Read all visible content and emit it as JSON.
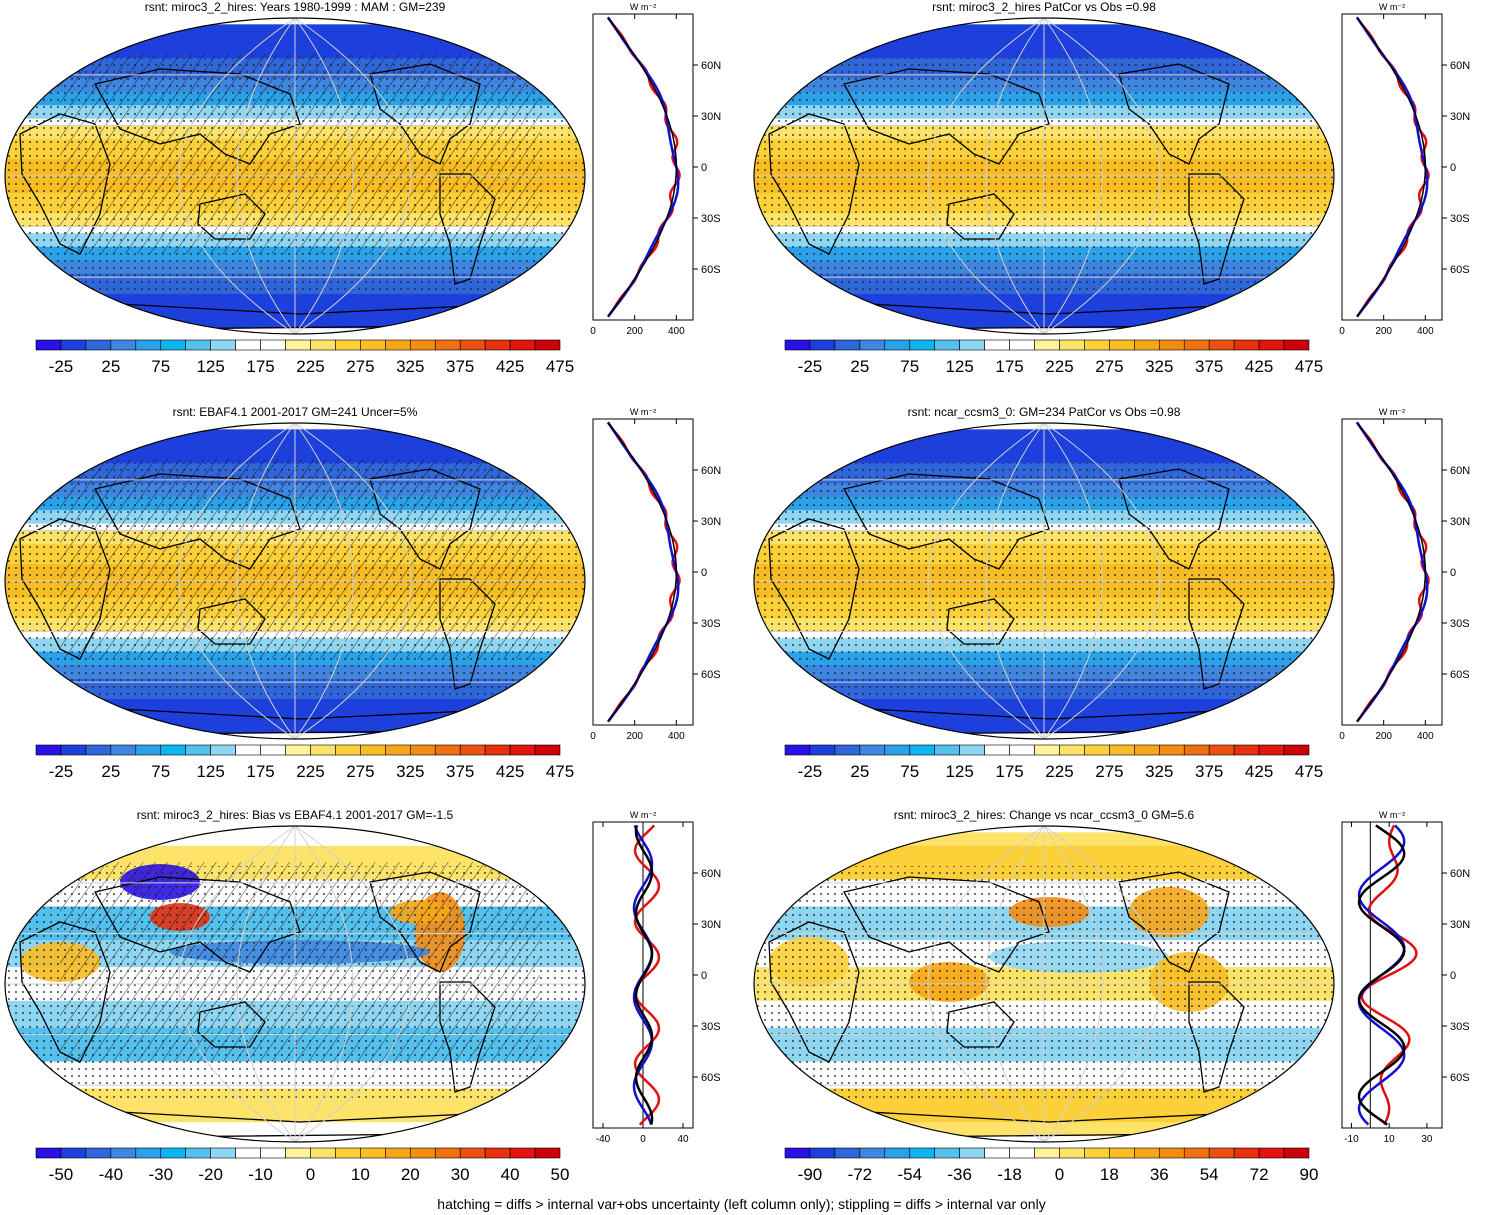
{
  "footer": "hatching = diffs > internal var+obs uncertainty (left column only); stippling = diffs > internal var only",
  "units_label": "W m⁻²",
  "lat_labels": [
    "60N",
    "30N",
    "0",
    "30S",
    "60S"
  ],
  "scales": {
    "abs": {
      "ticks": [
        "-25",
        "25",
        "75",
        "125",
        "175",
        "225",
        "275",
        "325",
        "375",
        "425",
        "475"
      ],
      "colors": [
        "#2a12e6",
        "#1d3fdb",
        "#2f66d9",
        "#3e86e0",
        "#2aa2ea",
        "#0cb5ef",
        "#54c0ed",
        "#8fd6f2",
        "#ffffff",
        "#ffffff",
        "#fff39c",
        "#fde36a",
        "#fcd038",
        "#f8bd22",
        "#f6a619",
        "#f48c14",
        "#f1700f",
        "#ec500f",
        "#e6300e",
        "#e3150f",
        "#cc0008"
      ]
    },
    "bias": {
      "ticks": [
        "-50",
        "-40",
        "-30",
        "-20",
        "-10",
        "0",
        "10",
        "20",
        "30",
        "40",
        "50"
      ],
      "colors": [
        "#2a12e6",
        "#1d3fdb",
        "#2f66d9",
        "#3e86e0",
        "#2aa2ea",
        "#0cb5ef",
        "#54c0ed",
        "#8fd6f2",
        "#ffffff",
        "#ffffff",
        "#fff39c",
        "#fde36a",
        "#fcd038",
        "#f8bd22",
        "#f6a619",
        "#f48c14",
        "#f1700f",
        "#ec500f",
        "#e6300e",
        "#e3150f",
        "#cc0008"
      ]
    },
    "change": {
      "ticks": [
        "-90",
        "-72",
        "-54",
        "-36",
        "-18",
        "0",
        "18",
        "36",
        "54",
        "72",
        "90"
      ],
      "colors": [
        "#2a12e6",
        "#1d3fdb",
        "#2f66d9",
        "#3e86e0",
        "#2aa2ea",
        "#0cb5ef",
        "#54c0ed",
        "#8fd6f2",
        "#ffffff",
        "#ffffff",
        "#fff39c",
        "#fde36a",
        "#fcd038",
        "#f8bd22",
        "#f6a619",
        "#f48c14",
        "#f1700f",
        "#ec500f",
        "#e6300e",
        "#e3150f",
        "#cc0008"
      ]
    }
  },
  "panels": [
    {
      "id": "p1",
      "title": "rsnt: miroc3_2_hires: Years 1980-1999 : MAM : GM=239",
      "scale": "abs",
      "kind": "abs",
      "hatch": true,
      "zonal": {
        "xlim": [
          0,
          480
        ],
        "xticks": [
          "0",
          "200",
          "400"
        ],
        "xtick_values": [
          0,
          200,
          400
        ]
      }
    },
    {
      "id": "p2",
      "title": "rsnt: miroc3_2_hires PatCor vs Obs =0.98",
      "scale": "abs",
      "kind": "abs",
      "hatch": false,
      "zonal": {
        "xlim": [
          0,
          480
        ],
        "xticks": [
          "0",
          "200",
          "400"
        ],
        "xtick_values": [
          0,
          200,
          400
        ]
      }
    },
    {
      "id": "p3",
      "title": "rsnt: EBAF4.1 2001-2017 GM=241 Uncer=5%",
      "scale": "abs",
      "kind": "abs",
      "hatch": true,
      "zonal": {
        "xlim": [
          0,
          480
        ],
        "xticks": [
          "0",
          "200",
          "400"
        ],
        "xtick_values": [
          0,
          200,
          400
        ]
      }
    },
    {
      "id": "p4",
      "title": "rsnt: ncar_ccsm3_0: GM=234 PatCor vs Obs =0.98",
      "scale": "abs",
      "kind": "abs",
      "hatch": false,
      "zonal": {
        "xlim": [
          0,
          480
        ],
        "xticks": [
          "0",
          "200",
          "400"
        ],
        "xtick_values": [
          0,
          200,
          400
        ]
      }
    },
    {
      "id": "p5",
      "title": "rsnt: miroc3_2_hires: Bias vs EBAF4.1 2001-2017 GM=-1.5",
      "scale": "bias",
      "kind": "bias",
      "hatch": true,
      "zonal": {
        "xlim": [
          -50,
          50
        ],
        "xticks": [
          "-40",
          "0",
          "40"
        ],
        "xtick_values": [
          -40,
          0,
          40
        ]
      }
    },
    {
      "id": "p6",
      "title": "rsnt: miroc3_2_hires: Change vs ncar_ccsm3_0 GM=5.6",
      "scale": "change",
      "kind": "change",
      "hatch": false,
      "zonal": {
        "xlim": [
          -15,
          38
        ],
        "xticks": [
          "-10",
          "10",
          "30"
        ],
        "xtick_values": [
          -10,
          10,
          30
        ]
      }
    }
  ]
}
